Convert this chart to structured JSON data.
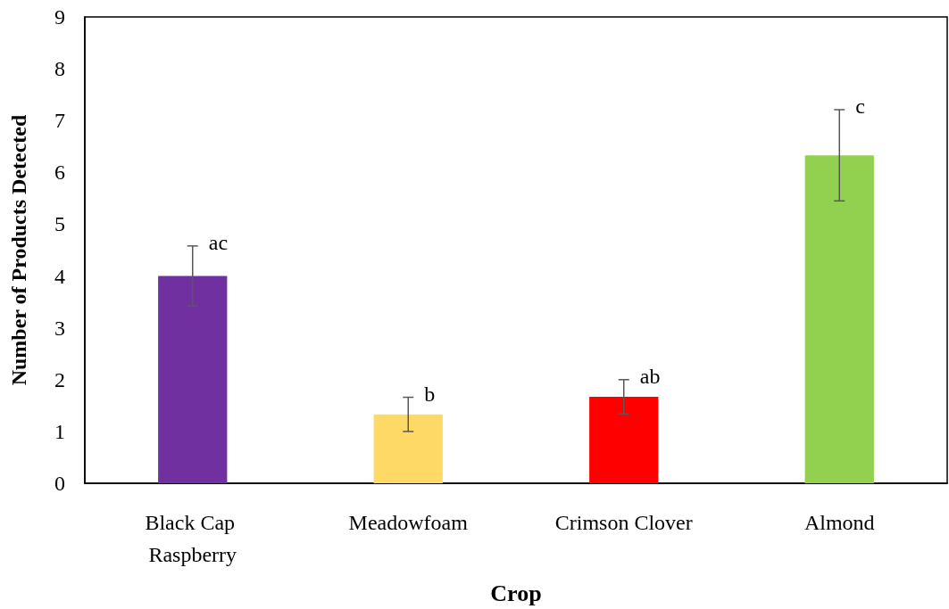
{
  "chart_data": {
    "type": "bar",
    "xlabel": "Crop",
    "ylabel": "Number of Products Detected",
    "categories": [
      "Black Cap Raspberry",
      "Meadowfoam",
      "Crimson Clover",
      "Almond"
    ],
    "values": [
      4.0,
      1.33,
      1.67,
      6.33
    ],
    "colors": [
      "#7030a0",
      "#ffd966",
      "#ff0000",
      "#92d050"
    ],
    "errors": [
      0.58,
      0.33,
      0.33,
      0.88
    ],
    "ylim": [
      0,
      9
    ],
    "yticks": [
      0,
      1,
      2,
      3,
      4,
      5,
      6,
      7,
      8,
      9
    ],
    "grid": false,
    "annotations": [
      {
        "text": "ac",
        "x": "Black Cap Raspberry",
        "y": 4.58
      },
      {
        "text": "b",
        "x": "Meadowfoam",
        "y": 1.66
      },
      {
        "text": "ab",
        "x": "Crimson Clover",
        "y": 2.0
      },
      {
        "text": "c",
        "x": "Almond",
        "y": 7.21
      }
    ]
  }
}
